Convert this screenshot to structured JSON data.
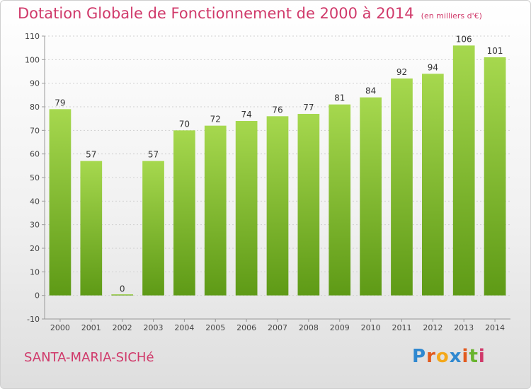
{
  "header": {
    "title": "Dotation Globale de Fonctionnement de 2000 à 2014",
    "subtitle": "(en milliers d'€)"
  },
  "footer": {
    "commune": "SANTA-MARIA-SICHé",
    "logo": [
      "P",
      "r",
      "o",
      "x",
      "i",
      "t",
      "i"
    ]
  },
  "colors": {
    "accent": "#d0396a",
    "bar_light": "#a6d84e",
    "bar_dark": "#5e9a16",
    "grid": "#d0d0d0"
  },
  "chart_data": {
    "type": "bar",
    "title": "Dotation Globale de Fonctionnement de 2000 à 2014",
    "subtitle": "(en milliers d'€)",
    "xlabel": "",
    "ylabel": "",
    "categories": [
      "2000",
      "2001",
      "2002",
      "2003",
      "2004",
      "2005",
      "2006",
      "2007",
      "2008",
      "2009",
      "2010",
      "2011",
      "2012",
      "2013",
      "2014"
    ],
    "values": [
      79,
      57,
      0,
      57,
      70,
      72,
      74,
      76,
      77,
      81,
      84,
      92,
      94,
      106,
      101
    ],
    "data_labels": [
      "79",
      "57",
      "0",
      "57",
      "70",
      "72",
      "74",
      "76",
      "77",
      "81",
      "84",
      "92",
      "94",
      "106",
      "101"
    ],
    "ylim": [
      -10,
      110
    ],
    "yticks": [
      -10,
      0,
      10,
      20,
      30,
      40,
      50,
      60,
      70,
      80,
      90,
      100,
      110
    ],
    "grid": true,
    "legend": "none"
  }
}
